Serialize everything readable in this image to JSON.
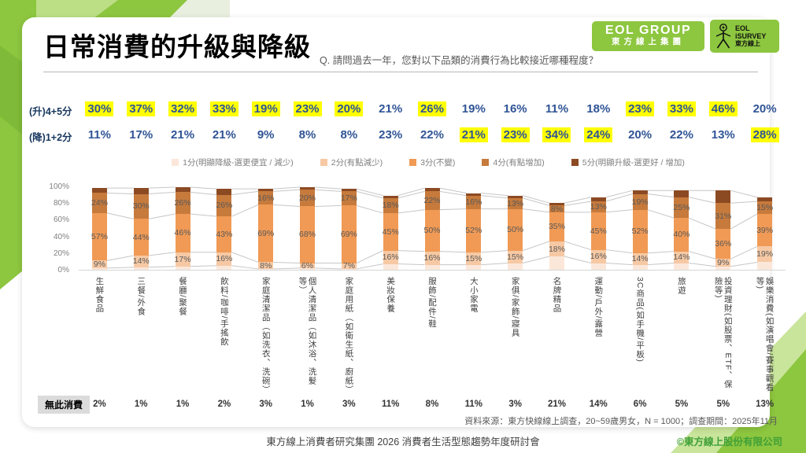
{
  "header": {
    "title": "日常消費的升級與降級",
    "question": "Q. 請問過去一年，您對以下品類的消費行為比較接近哪種程度？",
    "logo_group_line1": "EOL GROUP",
    "logo_group_line2": "東方線上集團",
    "logo_isurvey_line1": "EOL",
    "logo_isurvey_line2": "iSURVEY",
    "logo_isurvey_line3": "東方線上"
  },
  "rows": {
    "up_label": "(升)4+5分",
    "down_label": "(降)1+2分",
    "no_consumption_label": "無此消費"
  },
  "colors": {
    "brand_green": "#8DC63F",
    "light_green": "#C3E393",
    "pale_band": "#E9EFDE",
    "dark_green": "#7FBA38",
    "highlight_yellow": "#FFFF00",
    "percent_blue": "#2F5496",
    "connector_gray": "#C6C6C6"
  },
  "chart_data": {
    "type": "bar",
    "subtype": "stacked-vertical-with-series-lines",
    "y_axis_ticks": [
      "100%",
      "80%",
      "60%",
      "40%",
      "20%",
      "0%"
    ],
    "y_range": [
      0,
      100
    ],
    "categories": [
      "生鮮食品",
      "三餐/外食",
      "餐廳/聚餐",
      "飲料/咖啡/手搖飲",
      "家庭清潔品（如洗衣、洗碗）",
      "個人清潔品（如沐浴、洗髮等）",
      "家庭用紙（如衛生紙、廚紙）",
      "美妝保養",
      "服飾/配件/鞋",
      "大小家電",
      "家俱/家飾/寢具",
      "名牌精品",
      "運動/戶外/露營",
      "3C商品(如手機/平板)",
      "旅遊",
      "投資理財(如股票、ETF、保險等)",
      "娛樂消費(如演唱會/賽事觀看等)"
    ],
    "up_row": {
      "values": [
        "30%",
        "37%",
        "32%",
        "33%",
        "19%",
        "23%",
        "20%",
        "21%",
        "26%",
        "19%",
        "16%",
        "11%",
        "18%",
        "23%",
        "33%",
        "46%",
        "20%"
      ],
      "highlight": [
        true,
        true,
        true,
        true,
        true,
        true,
        true,
        false,
        true,
        false,
        false,
        false,
        false,
        true,
        true,
        true,
        false
      ]
    },
    "down_row": {
      "values": [
        "11%",
        "17%",
        "21%",
        "21%",
        "9%",
        "8%",
        "8%",
        "23%",
        "22%",
        "21%",
        "23%",
        "34%",
        "24%",
        "20%",
        "22%",
        "13%",
        "28%"
      ],
      "highlight": [
        false,
        false,
        false,
        false,
        false,
        false,
        false,
        false,
        false,
        true,
        true,
        true,
        true,
        false,
        false,
        false,
        true
      ]
    },
    "series": [
      {
        "name": "1分(明顯降級-選更便宜 / 減少)",
        "color": "#FBE7DA",
        "labeled": false,
        "values": [
          2,
          3,
          4,
          5,
          1,
          2,
          1,
          7,
          6,
          6,
          8,
          16,
          8,
          6,
          8,
          4,
          9
        ]
      },
      {
        "name": "2分(有點減少)",
        "color": "#F6C9A4",
        "labeled": true,
        "values": [
          9,
          14,
          17,
          16,
          8,
          6,
          7,
          16,
          16,
          15,
          15,
          18,
          16,
          14,
          14,
          9,
          19
        ]
      },
      {
        "name": "3分(不變)",
        "color": "#F09A55",
        "labeled": true,
        "values": [
          57,
          44,
          46,
          43,
          69,
          68,
          69,
          45,
          50,
          52,
          50,
          35,
          45,
          52,
          40,
          36,
          39
        ]
      },
      {
        "name": "4分(有點增加)",
        "color": "#C67A3C",
        "labeled": true,
        "values": [
          24,
          30,
          26,
          26,
          16,
          20,
          17,
          18,
          22,
          16,
          13,
          8,
          13,
          19,
          25,
          31,
          15
        ]
      },
      {
        "name": "5分(明顯升級-選更好 / 增加)",
        "color": "#8C4A23",
        "labeled": false,
        "values": [
          6,
          7,
          6,
          7,
          3,
          3,
          3,
          3,
          4,
          3,
          3,
          3,
          5,
          4,
          8,
          15,
          5
        ]
      }
    ],
    "no_consumption": [
      "2%",
      "1%",
      "1%",
      "2%",
      "3%",
      "1%",
      "3%",
      "11%",
      "8%",
      "11%",
      "3%",
      "21%",
      "14%",
      "6%",
      "5%",
      "5%",
      "13%"
    ]
  },
  "footer": {
    "source": "資料來源：東方快線線上調查，20~59歲男女，N = 1000；調查期間：2025年11月",
    "center": "東方線上消費者研究集團 2026 消費者生活型態趨勢年度研討會",
    "copyright": "©東方線上股份有限公司"
  }
}
